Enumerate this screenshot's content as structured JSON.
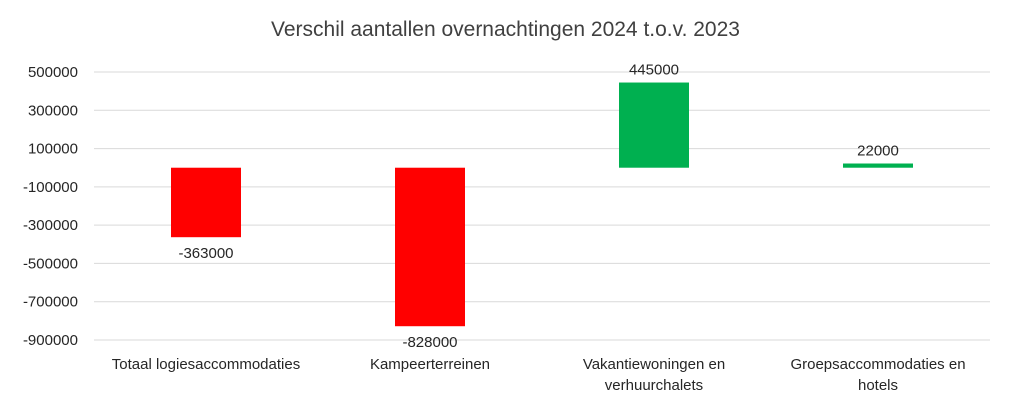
{
  "chart_data": {
    "type": "bar",
    "title": "Verschil aantallen overnachtingen 2024 t.o.v. 2023",
    "xlabel": "",
    "ylabel": "",
    "categories": [
      [
        "Totaal logiesaccommodaties"
      ],
      [
        "Kampeerterreinen"
      ],
      [
        "Vakantiewoningen en",
        "verhuurchalets"
      ],
      [
        "Groepsaccommodaties en",
        "hotels"
      ]
    ],
    "values": [
      -363000,
      -828000,
      445000,
      22000
    ],
    "data_labels": [
      "-363000",
      "-828000",
      "445000",
      "22000"
    ],
    "bar_colors": [
      "#FF0000",
      "#FF0000",
      "#00B050",
      "#00B050"
    ],
    "ylim": [
      -900000,
      500000
    ],
    "yticks": [
      500000,
      300000,
      100000,
      -100000,
      -300000,
      -500000,
      -700000,
      -900000
    ],
    "ytick_labels": [
      "500000",
      "300000",
      "100000",
      "-100000",
      "-300000",
      "-500000",
      "-700000",
      "-900000"
    ],
    "grid": true,
    "legend": "none"
  }
}
